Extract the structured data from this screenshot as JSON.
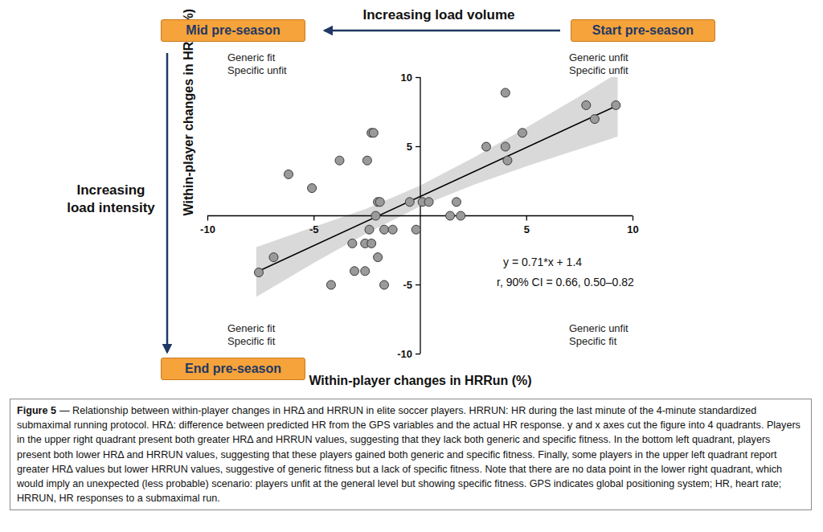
{
  "chart_data": {
    "type": "scatter",
    "x_label": "Within-player changes in HRRun (%)",
    "y_label": "Within-player changes in HRΔ (%)",
    "x": [
      -7.6,
      -6.9,
      -6.2,
      -5.1,
      -4.2,
      -3.8,
      -3.2,
      -3.1,
      -2.6,
      -2.6,
      -2.5,
      -2.4,
      -2.3,
      -2.2,
      -2.3,
      -2.0,
      -2.1,
      -2.0,
      -1.9,
      -1.7,
      -1.7,
      -1.3,
      -0.5,
      -0.2,
      0.1,
      0.4,
      1.4,
      1.7,
      1.9,
      3.1,
      4.0,
      4.0,
      4.1,
      4.8,
      7.8,
      8.2,
      9.2
    ],
    "values": [
      -4.1,
      -3.0,
      3.0,
      2.0,
      -5.0,
      4.0,
      -2.0,
      -4.0,
      -4.0,
      -2.0,
      4.0,
      -1.0,
      6.0,
      6.0,
      -2.0,
      -3.0,
      0.0,
      1.0,
      1.0,
      -1.0,
      -5.0,
      -1.0,
      1.0,
      -1.0,
      1.0,
      1.0,
      0.0,
      1.0,
      0.0,
      5.0,
      8.9,
      5.0,
      4.0,
      6.0,
      8.0,
      7.0,
      8.0
    ],
    "color": "#9a9a9a",
    "marker": "circle",
    "grid": false,
    "xlim": [
      -10,
      10
    ],
    "ylim": [
      -10,
      10
    ],
    "xticks": [
      -10,
      -5,
      5,
      10
    ],
    "yticks": [
      -10,
      -5,
      5,
      10
    ],
    "fit": {
      "slope": 0.71,
      "intercept": 1.4,
      "x": [
        -7.7,
        9.3
      ],
      "color": "#000000"
    },
    "confidence_band": {
      "x": [
        -7.7,
        -5,
        -2.5,
        0,
        2.5,
        5,
        7.5,
        9.3
      ],
      "lower": [
        -5.9,
        -3.45,
        -1.3,
        0.65,
        2.2,
        3.55,
        4.8,
        5.7
      ],
      "upper": [
        -2.3,
        -0.85,
        0.5,
        2.15,
        4.15,
        6.35,
        8.6,
        10.3
      ],
      "color": "#d9d9d9"
    },
    "annotations": {
      "equation": "y = 0.71*x + 1.4",
      "correlation": "r, 90% CI = 0.66, 0.50–0.82"
    },
    "quadrants": {
      "top_left": [
        "Generic fit",
        "Specific unfit"
      ],
      "top_right": [
        "Generic unfit",
        "Specific unfit"
      ],
      "bottom_left": [
        "Generic fit",
        "Specific fit"
      ],
      "bottom_right": [
        "Generic unfit",
        "Specific fit"
      ]
    },
    "phases": {
      "start": "Start pre-season",
      "mid": "Mid pre-season",
      "end": "End pre-season"
    },
    "arrows": {
      "volume": "Increasing load volume",
      "intensity": [
        "Increasing",
        "load intensity"
      ]
    },
    "caption": {
      "label": "Figure 5",
      "text": "— Relationship between within-player changes in HRΔ and HRRUN in elite soccer players. HRRUN: HR during the last minute of the 4-minute standardized submaximal running protocol. HRΔ: difference between predicted HR from the GPS variables and the actual HR response. y and x axes cut the figure into 4 quadrants. Players in the upper right quadrant present both greater HRΔ and HRRUN values, suggesting that they lack both generic and specific fitness. In the bottom left quadrant, players present both lower HRΔ and HRRUN values, suggesting that these players gained both generic and specific fitness. Finally, some players in the upper left quadrant report greater HRΔ values but lower HRRUN values, suggestive of generic fitness but a lack of specific fitness. Note that there are no data point in the lower right quadrant, which would imply an unexpected (less probable) scenario: players unfit at the general level but showing specific fitness. GPS indicates global positioning system; HR, heart rate; HRRUN, HR responses to a submaximal run."
    }
  }
}
